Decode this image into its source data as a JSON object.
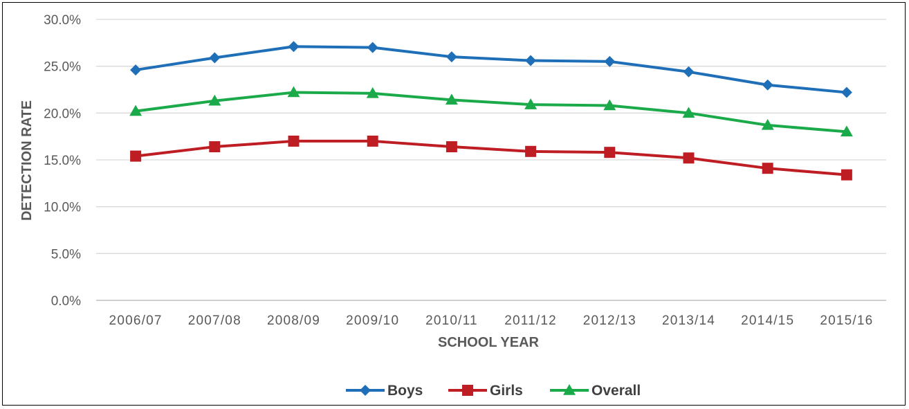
{
  "chart_data": {
    "type": "line",
    "title": "",
    "xlabel": "SCHOOL YEAR",
    "ylabel": "DETECTION RATE",
    "categories": [
      "2006/07",
      "2007/08",
      "2008/09",
      "2009/10",
      "2010/11",
      "2011/12",
      "2012/13",
      "2013/14",
      "2014/15",
      "2015/16"
    ],
    "ylim": [
      0,
      30
    ],
    "yticks": [
      "0.0%",
      "5.0%",
      "10.0%",
      "15.0%",
      "20.0%",
      "25.0%",
      "30.0%"
    ],
    "grid": true,
    "legend": "bottom",
    "series": [
      {
        "name": "Boys",
        "color": "#1F6FB8",
        "marker": "diamond",
        "values": [
          24.6,
          25.9,
          27.1,
          27.0,
          26.0,
          25.6,
          25.5,
          24.4,
          23.0,
          22.2
        ]
      },
      {
        "name": "Girls",
        "color": "#BE1E23",
        "marker": "square",
        "values": [
          15.4,
          16.4,
          17.0,
          17.0,
          16.4,
          15.9,
          15.8,
          15.2,
          14.1,
          13.4
        ]
      },
      {
        "name": "Overall",
        "color": "#1BAA4A",
        "marker": "triangle",
        "values": [
          20.2,
          21.3,
          22.2,
          22.1,
          21.4,
          20.9,
          20.8,
          20.0,
          18.7,
          18.0
        ]
      }
    ]
  }
}
